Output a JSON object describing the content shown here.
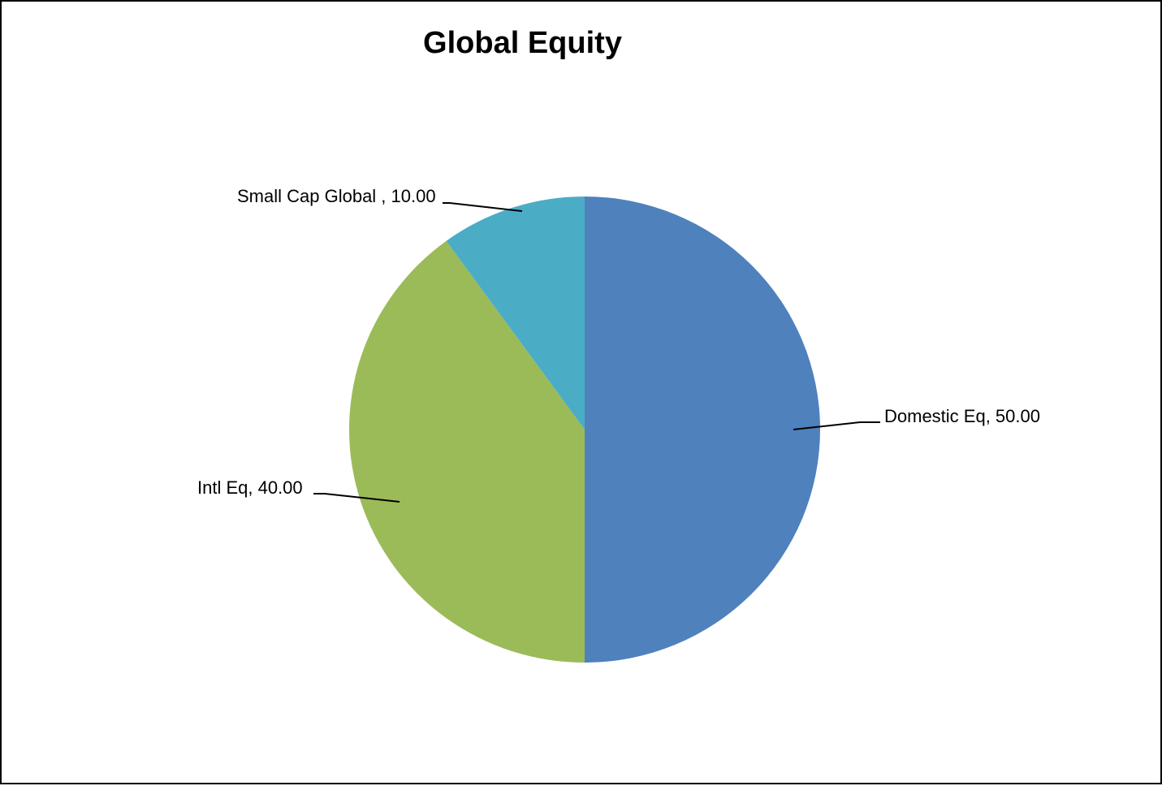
{
  "chart_data": {
    "type": "pie",
    "title": "Global Equity",
    "slices": [
      {
        "name": "Domestic Eq",
        "value": 50.0,
        "label": "Domestic Eq,  50.00",
        "color": "#4f81bd"
      },
      {
        "name": "Intl Eq",
        "value": 40.0,
        "label": "Intl Eq,  40.00",
        "color": "#9bbb59"
      },
      {
        "name": "Small Cap Global",
        "value": 10.0,
        "label": "Small Cap Global ,  10.00",
        "color": "#4bacc6"
      }
    ],
    "start_angle_deg": 0,
    "direction": "clockwise",
    "legend": "none"
  }
}
